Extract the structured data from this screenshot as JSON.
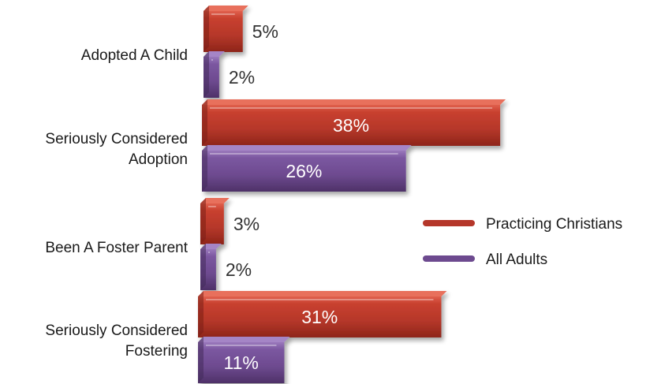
{
  "chart_data": {
    "type": "bar",
    "orientation": "horizontal",
    "categories": [
      "Adopted A Child",
      "Seriously Considered Adoption",
      "Been A Foster Parent",
      "Seriously Considered Fostering"
    ],
    "category_lines": [
      [
        "Adopted A Child"
      ],
      [
        "Seriously Considered",
        "Adoption"
      ],
      [
        "Been A Foster Parent"
      ],
      [
        "Seriously Considered",
        "Fostering"
      ]
    ],
    "series": [
      {
        "name": "Practicing Christians",
        "values": [
          5,
          38,
          3,
          31
        ],
        "labels": [
          "5%",
          "38%",
          "3%",
          "31%"
        ],
        "color": "#b5372a"
      },
      {
        "name": "All Adults",
        "values": [
          2,
          26,
          2,
          11
        ],
        "labels": [
          "2%",
          "26%",
          "2%",
          "11%"
        ],
        "color": "#6d4a8f"
      }
    ],
    "unit": "%",
    "legend_position": "right",
    "grid": false
  }
}
